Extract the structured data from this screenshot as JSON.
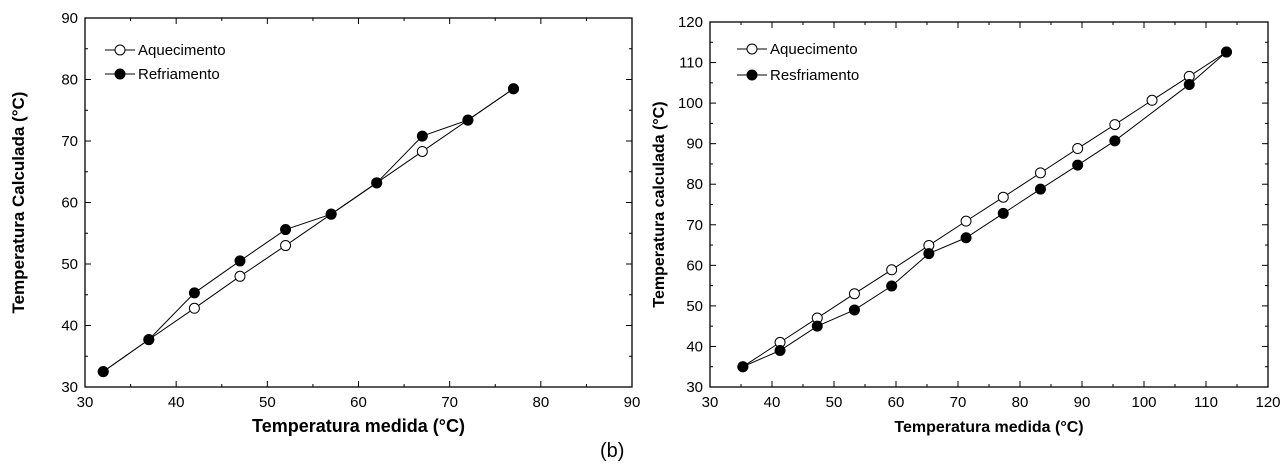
{
  "caption": "(b)",
  "chart_data": [
    {
      "type": "line",
      "xlabel": "Temperatura medida (°C)",
      "ylabel": "Temperatura Calculada (°C)",
      "xlim": [
        30,
        90
      ],
      "ylim": [
        30,
        90
      ],
      "xticks": [
        30,
        40,
        50,
        60,
        70,
        80,
        90
      ],
      "yticks": [
        30,
        40,
        50,
        60,
        70,
        80,
        90
      ],
      "grid": false,
      "legend_position": "top-left",
      "series": [
        {
          "name": "Aquecimento",
          "marker": "open-circle",
          "x": [
            32,
            37,
            42,
            47,
            52,
            57,
            62,
            67,
            72,
            77
          ],
          "y": [
            32.5,
            37.7,
            42.8,
            48.0,
            53.0,
            58.1,
            63.2,
            68.3,
            73.4,
            78.5
          ]
        },
        {
          "name": "Refriamento",
          "marker": "filled-circle",
          "x": [
            32,
            37,
            42,
            47,
            52,
            57,
            62,
            67,
            72,
            77
          ],
          "y": [
            32.5,
            37.7,
            45.3,
            50.5,
            55.6,
            58.1,
            63.2,
            70.8,
            73.4,
            78.5
          ]
        }
      ]
    },
    {
      "type": "line",
      "xlabel": "Temperatura medida (°C)",
      "ylabel": "Temperatura calculada (°C)",
      "xlim": [
        30,
        120
      ],
      "ylim": [
        30,
        120
      ],
      "xticks": [
        30,
        40,
        50,
        60,
        70,
        80,
        90,
        100,
        110,
        120
      ],
      "yticks": [
        30,
        40,
        50,
        60,
        70,
        80,
        90,
        100,
        110,
        120
      ],
      "grid": false,
      "legend_position": "top-left",
      "series": [
        {
          "name": "Aquecimento",
          "marker": "open-circle",
          "x": [
            35.3,
            41.3,
            47.3,
            53.3,
            59.3,
            65.3,
            71.3,
            77.3,
            83.3,
            89.3,
            95.3,
            101.3,
            107.3,
            113.3
          ],
          "y": [
            35.0,
            41.0,
            47.0,
            53.0,
            58.9,
            64.9,
            70.9,
            76.8,
            82.8,
            88.8,
            94.7,
            100.7,
            106.6,
            112.6
          ]
        },
        {
          "name": "Resfriamento",
          "marker": "filled-circle",
          "x": [
            35.3,
            41.3,
            47.3,
            53.3,
            59.3,
            65.3,
            71.3,
            77.3,
            83.3,
            89.3,
            95.3,
            107.3,
            113.3
          ],
          "y": [
            35.0,
            39.0,
            45.0,
            49.0,
            54.9,
            62.9,
            66.8,
            72.8,
            78.8,
            84.7,
            90.7,
            104.6,
            112.6
          ]
        }
      ]
    }
  ]
}
